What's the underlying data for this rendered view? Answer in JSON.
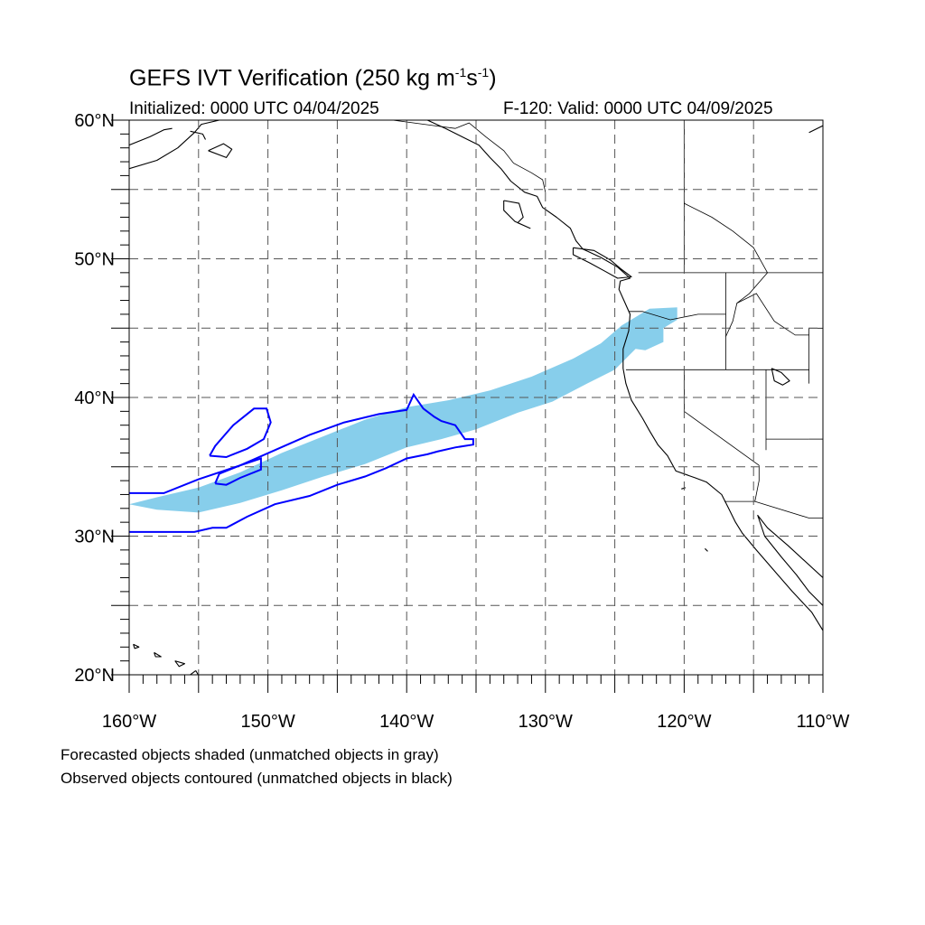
{
  "title": {
    "main": "GEFS IVT Verification (250 kg m",
    "exp1": "-1",
    "mid": "s",
    "exp2": "-1",
    "end": ")"
  },
  "initialized": "Initialized: 0000 UTC 04/04/2025",
  "valid": "F-120: Valid: 0000 UTC 04/09/2025",
  "map": {
    "lon_range": [
      -160,
      -110
    ],
    "lat_range": [
      20,
      60
    ],
    "grid": true,
    "x_ticks": [
      {
        "lon": -160,
        "label": "160°W"
      },
      {
        "lon": -150,
        "label": "150°W"
      },
      {
        "lon": -140,
        "label": "140°W"
      },
      {
        "lon": -130,
        "label": "130°W"
      },
      {
        "lon": -120,
        "label": "120°W"
      },
      {
        "lon": -110,
        "label": "110°W"
      }
    ],
    "y_ticks": [
      {
        "lat": 20,
        "label": "20°N"
      },
      {
        "lat": 30,
        "label": "30°N"
      },
      {
        "lat": 40,
        "label": "40°N"
      },
      {
        "lat": 50,
        "label": "50°N"
      },
      {
        "lat": 60,
        "label": "60°N"
      }
    ],
    "forecast_fill_color": "#87ceeb",
    "observed_contour_color": "#0000ff",
    "coastline_color": "#000000",
    "forecast_object": [
      [
        -160,
        32.3
      ],
      [
        -158,
        32.8
      ],
      [
        -155,
        33.5
      ],
      [
        -152,
        34.6
      ],
      [
        -149,
        36.0
      ],
      [
        -146,
        37.2
      ],
      [
        -143,
        38.4
      ],
      [
        -140,
        39.3
      ],
      [
        -137,
        39.8
      ],
      [
        -134,
        40.5
      ],
      [
        -131,
        41.5
      ],
      [
        -128,
        42.8
      ],
      [
        -126,
        43.9
      ],
      [
        -124.5,
        45.2
      ],
      [
        -122.5,
        46.4
      ],
      [
        -120.5,
        46.5
      ],
      [
        -120.5,
        45.6
      ],
      [
        -121.5,
        45.0
      ],
      [
        -121.5,
        44.0
      ],
      [
        -122.8,
        43.4
      ],
      [
        -123.5,
        43.5
      ],
      [
        -125,
        42.0
      ],
      [
        -127,
        41.0
      ],
      [
        -129.5,
        39.7
      ],
      [
        -132,
        38.9
      ],
      [
        -135,
        37.7
      ],
      [
        -137.5,
        37.0
      ],
      [
        -140,
        36.4
      ],
      [
        -143,
        35.2
      ],
      [
        -146,
        34.3
      ],
      [
        -149,
        33.3
      ],
      [
        -152,
        32.4
      ],
      [
        -155,
        31.7
      ],
      [
        -158,
        31.9
      ],
      [
        -160,
        32.3
      ]
    ],
    "observed_objects": [
      [
        [
          -160,
          33.1
        ],
        [
          -157.5,
          33.1
        ],
        [
          -155,
          34.1
        ],
        [
          -152,
          35.1
        ],
        [
          -149.5,
          36.2
        ],
        [
          -147,
          37.3
        ],
        [
          -144.5,
          38.2
        ],
        [
          -142,
          38.8
        ],
        [
          -140,
          39.1
        ],
        [
          -139.5,
          40.2
        ],
        [
          -138.8,
          39.2
        ],
        [
          -138,
          38.6
        ],
        [
          -137.5,
          38.3
        ],
        [
          -136.5,
          38.0
        ],
        [
          -135.8,
          37.0
        ],
        [
          -135.2,
          37.0
        ],
        [
          -135.2,
          36.6
        ],
        [
          -136.5,
          36.4
        ],
        [
          -137.8,
          36.1
        ],
        [
          -138.5,
          35.9
        ],
        [
          -140,
          35.6
        ],
        [
          -141.5,
          34.9
        ],
        [
          -143,
          34.3
        ],
        [
          -145,
          33.7
        ],
        [
          -147,
          32.9
        ],
        [
          -149.5,
          32.3
        ],
        [
          -151.5,
          31.4
        ],
        [
          -153,
          30.6
        ],
        [
          -154,
          30.6
        ],
        [
          -155.3,
          30.3
        ],
        [
          -160,
          30.3
        ]
      ],
      [
        [
          -154.2,
          35.8
        ],
        [
          -153.8,
          36.5
        ],
        [
          -152.5,
          38.0
        ],
        [
          -151,
          39.2
        ],
        [
          -150.1,
          39.2
        ],
        [
          -149.8,
          38.2
        ],
        [
          -150.3,
          37.0
        ],
        [
          -151.5,
          36.3
        ],
        [
          -153,
          35.7
        ],
        [
          -154.2,
          35.8
        ]
      ],
      [
        [
          -153.8,
          33.8
        ],
        [
          -153.5,
          34.5
        ],
        [
          -152,
          35.1
        ],
        [
          -150.5,
          35.6
        ],
        [
          -150.5,
          34.8
        ],
        [
          -152,
          34.2
        ],
        [
          -153,
          33.7
        ],
        [
          -153.8,
          33.8
        ]
      ]
    ],
    "coastlines": [
      [
        [
          -160,
          56.5
        ],
        [
          -158,
          57.1
        ],
        [
          -156.5,
          58.0
        ],
        [
          -155.3,
          59.1
        ],
        [
          -154.8,
          59.7
        ],
        [
          -153.5,
          60.0
        ]
      ],
      [
        [
          -160,
          58.2
        ],
        [
          -158.5,
          58.8
        ],
        [
          -157.5,
          59.3
        ],
        [
          -156.9,
          59.4
        ]
      ],
      [
        [
          -154.3,
          57.8
        ],
        [
          -153.0,
          57.3
        ],
        [
          -152.6,
          57.9
        ],
        [
          -153.2,
          58.3
        ],
        [
          -154.3,
          57.8
        ]
      ],
      [
        [
          -155.6,
          59.2
        ],
        [
          -154.7,
          59.0
        ],
        [
          -154.5,
          58.6
        ]
      ],
      [
        [
          -111,
          59.1
        ],
        [
          -110,
          59.6
        ]
      ],
      [
        [
          -138.5,
          60.0
        ],
        [
          -137.2,
          59.4
        ],
        [
          -135.8,
          58.7
        ],
        [
          -134.8,
          58.2
        ],
        [
          -134.0,
          57.3
        ],
        [
          -133.2,
          56.5
        ],
        [
          -132.5,
          55.6
        ],
        [
          -131.5,
          54.8
        ],
        [
          -130.6,
          54.5
        ],
        [
          -130.2,
          53.7
        ],
        [
          -129.2,
          53.0
        ],
        [
          -128.2,
          52.2
        ],
        [
          -127.8,
          51.3
        ],
        [
          -127.3,
          50.7
        ],
        [
          -126.0,
          50.1
        ],
        [
          -124.8,
          49.4
        ],
        [
          -123.9,
          48.6
        ],
        [
          -124.6,
          48.4
        ],
        [
          -124.7,
          47.8
        ],
        [
          -124.3,
          46.9
        ],
        [
          -123.9,
          46.0
        ],
        [
          -124.0,
          44.8
        ],
        [
          -124.4,
          43.5
        ],
        [
          -124.4,
          42.1
        ],
        [
          -124.2,
          41.0
        ],
        [
          -123.8,
          39.8
        ],
        [
          -123.0,
          38.5
        ],
        [
          -122.5,
          37.6
        ],
        [
          -121.9,
          36.6
        ],
        [
          -121.2,
          35.8
        ],
        [
          -120.6,
          34.7
        ],
        [
          -119.2,
          34.2
        ],
        [
          -118.4,
          33.9
        ],
        [
          -117.3,
          33.0
        ],
        [
          -116.8,
          32.0
        ],
        [
          -116.3,
          31.0
        ],
        [
          -115.8,
          30.2
        ],
        [
          -114.8,
          29.0
        ],
        [
          -113.5,
          27.5
        ],
        [
          -112.2,
          26.0
        ],
        [
          -110.8,
          24.5
        ],
        [
          -110.0,
          23.2
        ]
      ],
      [
        [
          -110.0,
          27.0
        ],
        [
          -112.5,
          29.3
        ],
        [
          -114.0,
          30.6
        ],
        [
          -114.7,
          31.5
        ],
        [
          -114.2,
          30.0
        ],
        [
          -113.0,
          28.5
        ],
        [
          -111.9,
          27.2
        ],
        [
          -111.0,
          26.0
        ],
        [
          -110.0,
          25.0
        ]
      ],
      [
        [
          -128.0,
          50.8
        ],
        [
          -126.5,
          50.6
        ],
        [
          -125.3,
          49.9
        ],
        [
          -124.6,
          49.3
        ],
        [
          -123.8,
          48.7
        ],
        [
          -124.8,
          48.6
        ],
        [
          -125.7,
          49.1
        ],
        [
          -126.8,
          49.7
        ],
        [
          -128.0,
          50.3
        ],
        [
          -128.0,
          50.8
        ]
      ],
      [
        [
          -133.0,
          54.2
        ],
        [
          -131.9,
          54.0
        ],
        [
          -131.6,
          53.0
        ],
        [
          -132.0,
          52.6
        ],
        [
          -131.1,
          52.2
        ],
        [
          -132.2,
          52.7
        ],
        [
          -133.0,
          53.5
        ],
        [
          -133.0,
          54.2
        ]
      ],
      [
        [
          -155.2,
          20.3
        ],
        [
          -154.9,
          19.8
        ],
        [
          -155.6,
          19.1
        ],
        [
          -156.0,
          19.7
        ],
        [
          -155.2,
          20.3
        ]
      ],
      [
        [
          -156.7,
          21.0
        ],
        [
          -156.0,
          20.8
        ],
        [
          -156.4,
          20.6
        ],
        [
          -156.7,
          21.0
        ]
      ],
      [
        [
          -158.2,
          21.6
        ],
        [
          -157.7,
          21.3
        ],
        [
          -158.1,
          21.3
        ],
        [
          -158.2,
          21.6
        ]
      ],
      [
        [
          -159.7,
          22.2
        ],
        [
          -159.3,
          22.0
        ],
        [
          -159.6,
          21.9
        ],
        [
          -159.7,
          22.2
        ]
      ],
      [
        [
          -120.2,
          33.4
        ],
        [
          -119.9,
          33.5
        ]
      ],
      [
        [
          -118.5,
          29.1
        ],
        [
          -118.3,
          28.9
        ]
      ],
      [
        [
          -113.7,
          42.1
        ],
        [
          -113.0,
          41.8
        ],
        [
          -112.4,
          41.2
        ],
        [
          -112.9,
          40.9
        ],
        [
          -113.5,
          41.2
        ],
        [
          -113.7,
          42.1
        ]
      ]
    ],
    "boundaries": [
      [
        [
          -141.0,
          60.0
        ],
        [
          -138.0,
          59.6
        ],
        [
          -136.5,
          59.4
        ],
        [
          -135.5,
          59.8
        ],
        [
          -134.3,
          58.8
        ],
        [
          -133.0,
          57.8
        ],
        [
          -132.3,
          56.9
        ],
        [
          -131.0,
          56.2
        ],
        [
          -130.2,
          55.7
        ],
        [
          -130.0,
          54.8
        ]
      ],
      [
        [
          -123.3,
          49.0
        ],
        [
          -110,
          49.0
        ]
      ],
      [
        [
          -120.0,
          60.0
        ],
        [
          -120.0,
          49.0
        ]
      ],
      [
        [
          -120.0,
          54.0
        ],
        [
          -118.0,
          53.0
        ],
        [
          -116.5,
          52.0
        ],
        [
          -115.0,
          50.8
        ],
        [
          -114.0,
          49.0
        ]
      ],
      [
        [
          -114.0,
          49.0
        ],
        [
          -115.3,
          47.5
        ],
        [
          -116.2,
          46.8
        ],
        [
          -116.5,
          45.5
        ],
        [
          -117.0,
          44.4
        ]
      ],
      [
        [
          -124.0,
          46.2
        ],
        [
          -123.0,
          46.2
        ],
        [
          -121.0,
          45.6
        ],
        [
          -119.0,
          46.0
        ],
        [
          -117.0,
          46.0
        ]
      ],
      [
        [
          -117.0,
          49.0
        ],
        [
          -117.0,
          42.0
        ]
      ],
      [
        [
          -124.2,
          42.0
        ],
        [
          -111.0,
          42.0
        ]
      ],
      [
        [
          -120.0,
          42.0
        ],
        [
          -120.0,
          39.0
        ],
        [
          -114.6,
          35.1
        ]
      ],
      [
        [
          -114.6,
          35.1
        ],
        [
          -114.6,
          34.0
        ],
        [
          -114.9,
          32.5
        ],
        [
          -117.1,
          32.5
        ]
      ],
      [
        [
          -114.9,
          32.5
        ],
        [
          -111.0,
          31.3
        ],
        [
          -108.2,
          31.3
        ]
      ],
      [
        [
          -114.1,
          42.0
        ],
        [
          -114.1,
          36.2
        ]
      ],
      [
        [
          -111.0,
          45.0
        ],
        [
          -110,
          45.0
        ]
      ],
      [
        [
          -111.0,
          45.0
        ],
        [
          -111.0,
          41.0
        ]
      ],
      [
        [
          -111.0,
          37.0
        ],
        [
          -110,
          37.0
        ]
      ],
      [
        [
          -114.1,
          37.0
        ],
        [
          -111.0,
          37.0
        ]
      ],
      [
        [
          -116.2,
          46.8
        ],
        [
          -114.8,
          47.5
        ],
        [
          -113.5,
          45.5
        ],
        [
          -112.0,
          44.5
        ],
        [
          -111.0,
          44.5
        ]
      ]
    ]
  },
  "notes": [
    "Forecasted objects shaded (unmatched objects in gray)",
    "Observed objects contoured (unmatched objects in black)"
  ]
}
